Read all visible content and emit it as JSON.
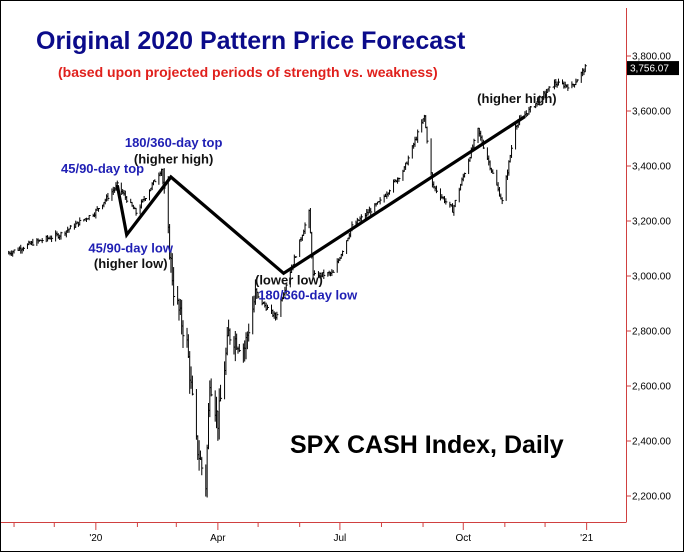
{
  "colors": {
    "title": "#0b0b8a",
    "subtitle": "#e0201c",
    "annotation_blue": "#1f1fb4",
    "annotation_black": "#111111",
    "axis": "#d04040",
    "bars": "#000000",
    "last_price_box": "#000000"
  },
  "chart_data": {
    "type": "bar",
    "title": "Original 2020 Pattern Price Forecast",
    "subtitle": "(based upon projected periods of strength vs. weakness)",
    "index_label": "SPX CASH Index, Daily",
    "y_axis_position": "right",
    "ylim": [
      2150,
      3880
    ],
    "y_ticks": [
      {
        "value": 2200,
        "label": "2,200.00"
      },
      {
        "value": 2400,
        "label": "2,400.00"
      },
      {
        "value": 2600,
        "label": "2,600.00"
      },
      {
        "value": 2800,
        "label": "2,800.00"
      },
      {
        "value": 3000,
        "label": "3,000.00"
      },
      {
        "value": 3200,
        "label": "3,200.00"
      },
      {
        "value": 3400,
        "label": "3,400.00"
      },
      {
        "value": 3600,
        "label": "3,600.00"
      },
      {
        "value": 3800,
        "label": "3,800.00"
      }
    ],
    "last_price": {
      "value": 3756.07,
      "label": "3,756.07"
    },
    "x_ticks": [
      {
        "date": "2020-01-01",
        "label": "'20"
      },
      {
        "date": "2020-04-01",
        "label": "Apr"
      },
      {
        "date": "2020-07-01",
        "label": "Jul"
      },
      {
        "date": "2020-10-01",
        "label": "Oct"
      },
      {
        "date": "2021-01-01",
        "label": "'21"
      }
    ],
    "x_minor_ticks": [
      "2019-11-01",
      "2019-12-01",
      "2020-02-01",
      "2020-03-01",
      "2020-05-01",
      "2020-06-01",
      "2020-08-01",
      "2020-09-01",
      "2020-11-01",
      "2020-12-01"
    ],
    "xlim": [
      "2019-10-26",
      "2021-01-05"
    ],
    "price_anchors": [
      {
        "date": "2019-10-26",
        "close": 3080
      },
      {
        "date": "2019-11-15",
        "close": 3120
      },
      {
        "date": "2019-12-05",
        "close": 3150
      },
      {
        "date": "2019-12-31",
        "close": 3230
      },
      {
        "date": "2020-01-17",
        "close": 3330
      },
      {
        "date": "2020-01-31",
        "close": 3230
      },
      {
        "date": "2020-02-19",
        "close": 3390
      },
      {
        "date": "2020-02-28",
        "close": 2950
      },
      {
        "date": "2020-03-09",
        "close": 2750
      },
      {
        "date": "2020-03-16",
        "close": 2390
      },
      {
        "date": "2020-03-23",
        "close": 2240
      },
      {
        "date": "2020-03-26",
        "close": 2630
      },
      {
        "date": "2020-04-01",
        "close": 2470
      },
      {
        "date": "2020-04-09",
        "close": 2790
      },
      {
        "date": "2020-04-21",
        "close": 2740
      },
      {
        "date": "2020-04-29",
        "close": 2930
      },
      {
        "date": "2020-05-14",
        "close": 2850
      },
      {
        "date": "2020-06-08",
        "close": 3230
      },
      {
        "date": "2020-06-11",
        "close": 3000
      },
      {
        "date": "2020-06-26",
        "close": 3010
      },
      {
        "date": "2020-07-10",
        "close": 3180
      },
      {
        "date": "2020-07-31",
        "close": 3270
      },
      {
        "date": "2020-08-18",
        "close": 3390
      },
      {
        "date": "2020-09-02",
        "close": 3580
      },
      {
        "date": "2020-09-08",
        "close": 3330
      },
      {
        "date": "2020-09-23",
        "close": 3240
      },
      {
        "date": "2020-10-12",
        "close": 3530
      },
      {
        "date": "2020-10-30",
        "close": 3270
      },
      {
        "date": "2020-11-09",
        "close": 3550
      },
      {
        "date": "2020-12-08",
        "close": 3700
      },
      {
        "date": "2020-12-21",
        "close": 3690
      },
      {
        "date": "2020-12-31",
        "close": 3756
      }
    ],
    "forecast_path": [
      {
        "date": "2020-01-17",
        "value": 3330
      },
      {
        "date": "2020-01-24",
        "value": 3150
      },
      {
        "date": "2020-02-26",
        "value": 3360
      },
      {
        "date": "2020-05-20",
        "value": 3010
      },
      {
        "date": "2020-11-16",
        "value": 3580
      }
    ],
    "annotations": [
      {
        "text": "45/90-day top",
        "style": "blue",
        "date": "2020-01-06",
        "value": 3375
      },
      {
        "text": "45/90-day low",
        "style": "blue",
        "date": "2020-01-27",
        "value": 3085
      },
      {
        "text": "(higher low)",
        "style": "black",
        "date": "2020-01-27",
        "value": 3030
      },
      {
        "text": "180/360-day top",
        "style": "blue",
        "date": "2020-02-28",
        "value": 3470
      },
      {
        "text": "(higher high)",
        "style": "black",
        "date": "2020-02-28",
        "value": 3410
      },
      {
        "text": "(lower low)",
        "style": "black",
        "date": "2020-05-24",
        "value": 2970
      },
      {
        "text": "180/360-day low",
        "style": "blue",
        "date": "2020-06-07",
        "value": 2915
      },
      {
        "text": "(higher high)",
        "style": "black",
        "date": "2020-11-10",
        "value": 3630
      }
    ]
  }
}
